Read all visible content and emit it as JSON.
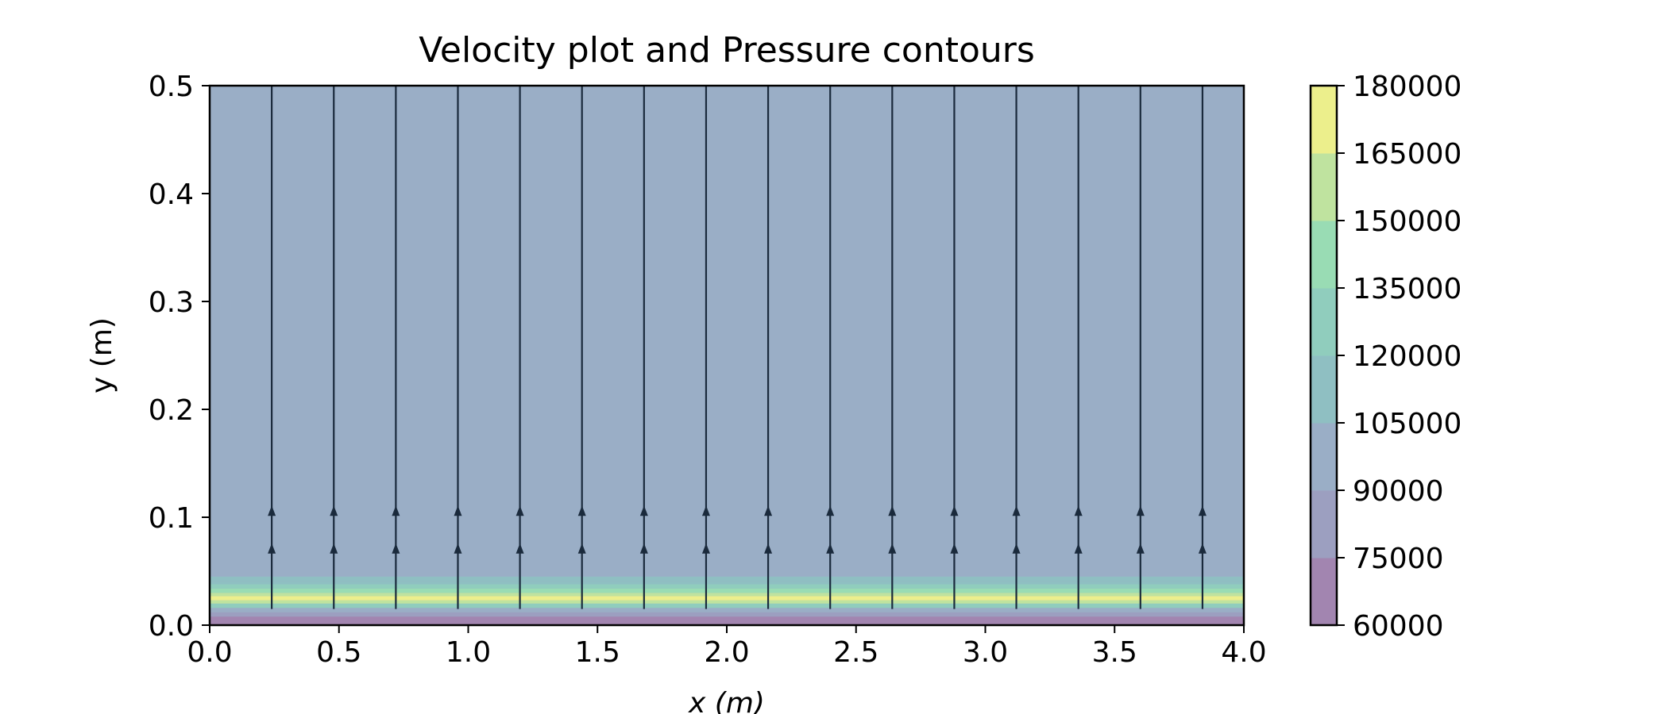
{
  "chart_data": {
    "type": "contour",
    "title": "Velocity plot and Pressure contours",
    "xlabel": "x (m)",
    "ylabel": "y (m)",
    "xlim": [
      0.0,
      4.0
    ],
    "ylim": [
      0.0,
      0.5
    ],
    "x_ticks": [
      "0.0",
      "0.5",
      "1.0",
      "1.5",
      "2.0",
      "2.5",
      "3.0",
      "3.5",
      "4.0"
    ],
    "y_ticks": [
      "0.0",
      "0.1",
      "0.2",
      "0.3",
      "0.4",
      "0.5"
    ],
    "grid": false,
    "colorbar": {
      "label": "",
      "ticks": [
        "60000",
        "75000",
        "90000",
        "105000",
        "120000",
        "135000",
        "150000",
        "165000",
        "180000"
      ],
      "levels": [
        60000,
        75000,
        90000,
        105000,
        120000,
        135000,
        150000,
        165000,
        180000
      ],
      "colors": [
        "#a285b0",
        "#9c9fc0",
        "#9aaec6",
        "#8fbfc2",
        "#90cdbd",
        "#99dcb4",
        "#bfe39f",
        "#ecef8c"
      ]
    },
    "pressure_contours": {
      "background_level_pa": 97500,
      "bands": [
        {
          "y0": 0.0,
          "y1": 0.008,
          "level": 67500
        },
        {
          "y0": 0.008,
          "y1": 0.012,
          "level": 82500
        },
        {
          "y0": 0.012,
          "y1": 0.016,
          "level": 97500
        },
        {
          "y0": 0.016,
          "y1": 0.02,
          "level": 127500
        },
        {
          "y0": 0.02,
          "y1": 0.023,
          "level": 157500
        },
        {
          "y0": 0.023,
          "y1": 0.027,
          "level": 172500
        },
        {
          "y0": 0.027,
          "y1": 0.03,
          "level": 157500
        },
        {
          "y0": 0.03,
          "y1": 0.034,
          "level": 142500
        },
        {
          "y0": 0.034,
          "y1": 0.038,
          "level": 127500
        },
        {
          "y0": 0.038,
          "y1": 0.041,
          "level": 112500
        },
        {
          "y0": 0.041,
          "y1": 0.045,
          "level": 105000
        }
      ]
    },
    "streamlines": {
      "direction": "+y",
      "color": "#1a2a3c",
      "y_start": 0.015,
      "y_end": 0.5,
      "x": [
        0.24,
        0.48,
        0.72,
        0.96,
        1.2,
        1.44,
        1.68,
        1.92,
        2.16,
        2.4,
        2.64,
        2.88,
        3.12,
        3.36,
        3.6,
        3.84
      ],
      "arrow_y": [
        0.07,
        0.105
      ]
    }
  }
}
